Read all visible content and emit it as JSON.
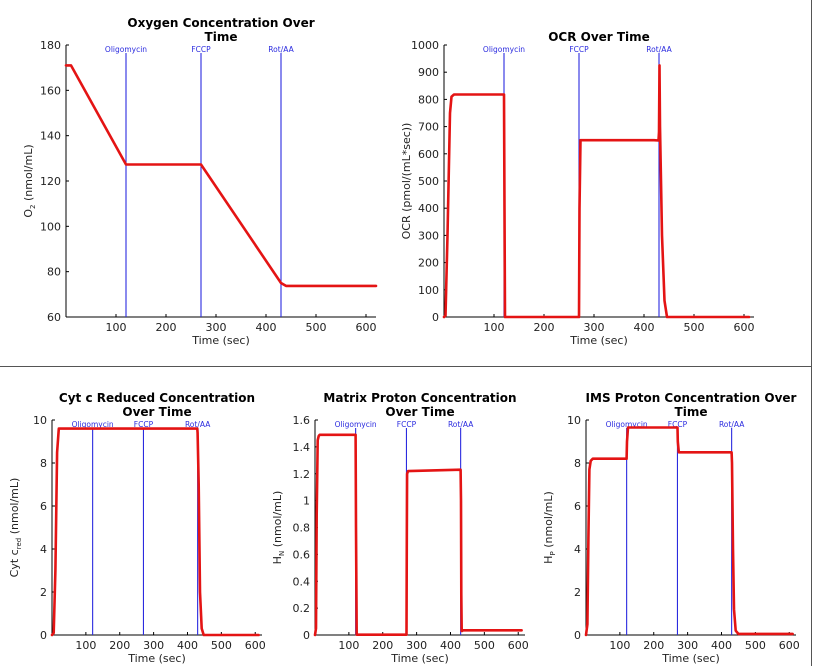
{
  "colors": {
    "trace": "#e41414",
    "marker": "#2b2bdf",
    "axis": "#000000"
  },
  "chart_data": [
    {
      "id": "o2",
      "type": "line",
      "title": "Oxygen Concentration Over Time",
      "title_lines": [
        "Oxygen Concentration Over",
        "Time"
      ],
      "xlabel": "Time (sec)",
      "ylabel_main": "O",
      "ylabel_sub": "2",
      "ylabel_rest": " (nmol/mL)",
      "xlim": [
        0,
        620
      ],
      "ylim": [
        60,
        180
      ],
      "xticks": [
        100,
        200,
        300,
        400,
        500,
        600
      ],
      "yticks": [
        60,
        80,
        100,
        120,
        140,
        160,
        180
      ],
      "markers": [
        {
          "label": "Oligomycin",
          "x": 120
        },
        {
          "label": "FCCP",
          "x": 270
        },
        {
          "label": "Rot/AA",
          "x": 430
        }
      ],
      "series": [
        {
          "x": [
            0,
            10,
            120,
            270,
            430,
            440,
            620
          ],
          "y": [
            171,
            171,
            127.3,
            127.3,
            75,
            73.7,
            73.7
          ]
        }
      ]
    },
    {
      "id": "ocr",
      "type": "line",
      "title": "OCR Over Time",
      "title_lines": [
        "OCR Over Time"
      ],
      "xlabel": "Time (sec)",
      "ylabel_main": "OCR (pmol/(mL*sec))",
      "ylabel_sub": "",
      "ylabel_rest": "",
      "xlim": [
        0,
        620
      ],
      "ylim": [
        0,
        1000
      ],
      "xticks": [
        100,
        200,
        300,
        400,
        500,
        600
      ],
      "yticks": [
        0,
        100,
        200,
        300,
        400,
        500,
        600,
        700,
        800,
        900,
        1000
      ],
      "markers": [
        {
          "label": "Oligomycin",
          "x": 120
        },
        {
          "label": "FCCP",
          "x": 270
        },
        {
          "label": "Rot/AA",
          "x": 430
        }
      ],
      "series": [
        {
          "x": [
            0,
            3,
            7,
            12,
            15,
            20,
            120,
            121,
            122,
            270,
            271,
            273,
            420,
            429,
            430,
            431,
            432,
            436,
            441,
            446,
            610
          ],
          "y": [
            0,
            5,
            300,
            750,
            810,
            818,
            818,
            400,
            0,
            0,
            400,
            650,
            650,
            649,
            680,
            925,
            700,
            300,
            60,
            0,
            0
          ]
        }
      ]
    },
    {
      "id": "cytc",
      "type": "line",
      "title": "Cyt c Reduced Concentration Over Time",
      "title_lines": [
        "Cyt c Reduced Concentration",
        "Over Time"
      ],
      "xlabel": "Time (sec)",
      "ylabel_main": "Cyt c",
      "ylabel_sub": "red",
      "ylabel_rest": " (nmol/mL)",
      "xlim": [
        0,
        620
      ],
      "ylim": [
        0,
        10
      ],
      "xticks": [
        100,
        200,
        300,
        400,
        500,
        600
      ],
      "yticks": [
        0,
        2,
        4,
        6,
        8,
        10
      ],
      "markers": [
        {
          "label": "Oligomycin",
          "x": 120
        },
        {
          "label": "FCCP",
          "x": 270
        },
        {
          "label": "Rot/AA",
          "x": 430
        }
      ],
      "series": [
        {
          "x": [
            0,
            5,
            10,
            15,
            20,
            429,
            430,
            433,
            437,
            442,
            448,
            610
          ],
          "y": [
            0,
            0.1,
            3,
            8.5,
            9.6,
            9.6,
            9.4,
            7,
            2,
            0.3,
            0,
            0
          ]
        }
      ]
    },
    {
      "id": "hn",
      "type": "line",
      "title": "Matrix Proton Concentration Over Time",
      "title_lines": [
        "Matrix Proton Concentration",
        "Over Time"
      ],
      "xlabel": "Time (sec)",
      "ylabel_main": "H",
      "ylabel_sub": "N",
      "ylabel_rest": " (nmol/mL)",
      "xlim": [
        0,
        620
      ],
      "ylim": [
        0,
        1.6
      ],
      "xticks": [
        100,
        200,
        300,
        400,
        500,
        600
      ],
      "yticks": [
        0,
        0.2,
        0.4,
        0.6,
        0.8,
        1,
        1.2,
        1.4,
        1.6
      ],
      "markers": [
        {
          "label": "Oligomycin",
          "x": 120
        },
        {
          "label": "FCCP",
          "x": 270
        },
        {
          "label": "Rot/AA",
          "x": 430
        }
      ],
      "series": [
        {
          "x": [
            0,
            3,
            5,
            8,
            11,
            14,
            115,
            120,
            121,
            123,
            270,
            271,
            272,
            275,
            430,
            431,
            432,
            433,
            434,
            437,
            610
          ],
          "y": [
            0,
            0.05,
            0.9,
            1.45,
            1.48,
            1.49,
            1.49,
            1.49,
            0.8,
            0.002,
            0.002,
            0.7,
            1.2,
            1.22,
            1.23,
            1.0,
            0.3,
            0.03,
            0.03,
            0.035,
            0.035
          ]
        }
      ]
    },
    {
      "id": "hp",
      "type": "line",
      "title": "IMS Proton Concentration Over Time",
      "title_lines": [
        "IMS Proton Concentration Over",
        "Time"
      ],
      "xlabel": "Time (sec)",
      "ylabel_main": "H",
      "ylabel_sub": "P",
      "ylabel_rest": " (nmol/mL)",
      "xlim": [
        0,
        620
      ],
      "ylim": [
        0,
        10
      ],
      "xticks": [
        100,
        200,
        300,
        400,
        500,
        600
      ],
      "yticks": [
        0,
        2,
        4,
        6,
        8,
        10
      ],
      "markers": [
        {
          "label": "Oligomycin",
          "x": 120
        },
        {
          "label": "FCCP",
          "x": 270
        },
        {
          "label": "Rot/AA",
          "x": 430
        }
      ],
      "series": [
        {
          "x": [
            0,
            4,
            7,
            10,
            14,
            20,
            120,
            121,
            124,
            270,
            271,
            274,
            430,
            431,
            434,
            437,
            442,
            450,
            610
          ],
          "y": [
            0,
            0.5,
            4.5,
            7.7,
            8.1,
            8.2,
            8.2,
            9,
            9.65,
            9.65,
            9,
            8.5,
            8.5,
            8,
            4,
            1.2,
            0.2,
            0.05,
            0.05
          ]
        }
      ]
    }
  ]
}
